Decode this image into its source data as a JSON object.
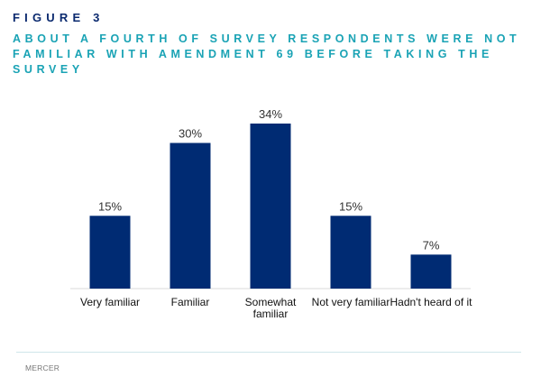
{
  "figure_label": "FIGURE 3",
  "title": "ABOUT A FOURTH OF SURVEY RESPONDENTS WERE NOT FAMILIAR WITH AMENDMENT 69 BEFORE TAKING THE SURVEY",
  "source": "MERCER",
  "colors": {
    "bar": "#002b73",
    "title": "#1aa3b5",
    "figure_label": "#0b2a6f"
  },
  "chart_data": {
    "type": "bar",
    "title": "",
    "xlabel": "",
    "ylabel": "",
    "categories": [
      [
        "Very familiar"
      ],
      [
        "Familiar"
      ],
      [
        "Somewhat",
        "familiar"
      ],
      [
        "Not very familiar"
      ],
      [
        "Hadn't heard of it"
      ]
    ],
    "values": [
      15,
      30,
      34,
      15,
      7
    ],
    "value_labels": [
      "15%",
      "30%",
      "34%",
      "15%",
      "7%"
    ],
    "ylim": [
      0,
      34
    ],
    "grid": false,
    "legend": "none"
  }
}
